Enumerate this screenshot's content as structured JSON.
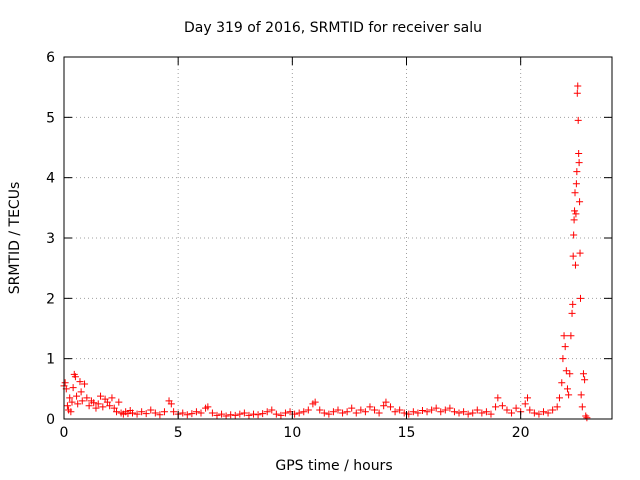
{
  "chart_data": {
    "type": "scatter",
    "title": "Day 319 of 2016, SRMTID for receiver salu",
    "xlabel": "GPS time / hours",
    "ylabel": "SRMTID / TECUs",
    "xlim": [
      0,
      24
    ],
    "ylim": [
      0,
      6
    ],
    "x_ticks": [
      "0",
      "5",
      "10",
      "15",
      "20"
    ],
    "y_ticks": [
      "0",
      "1",
      "2",
      "3",
      "4",
      "5",
      "6"
    ],
    "grid": true,
    "marker": "plus",
    "color": "#ff0000",
    "series": [
      {
        "points": [
          [
            0.0,
            0.55
          ],
          [
            0.05,
            0.6
          ],
          [
            0.1,
            0.5
          ],
          [
            0.15,
            0.22
          ],
          [
            0.2,
            0.15
          ],
          [
            0.25,
            0.35
          ],
          [
            0.3,
            0.12
          ],
          [
            0.35,
            0.28
          ],
          [
            0.4,
            0.52
          ],
          [
            0.45,
            0.74
          ],
          [
            0.5,
            0.7
          ],
          [
            0.55,
            0.38
          ],
          [
            0.6,
            0.25
          ],
          [
            0.7,
            0.62
          ],
          [
            0.75,
            0.45
          ],
          [
            0.8,
            0.3
          ],
          [
            0.9,
            0.58
          ],
          [
            1.0,
            0.35
          ],
          [
            1.1,
            0.22
          ],
          [
            1.2,
            0.3
          ],
          [
            1.3,
            0.27
          ],
          [
            1.4,
            0.18
          ],
          [
            1.5,
            0.25
          ],
          [
            1.6,
            0.38
          ],
          [
            1.7,
            0.2
          ],
          [
            1.8,
            0.33
          ],
          [
            1.9,
            0.28
          ],
          [
            2.0,
            0.22
          ],
          [
            2.1,
            0.35
          ],
          [
            2.2,
            0.18
          ],
          [
            2.3,
            0.12
          ],
          [
            2.4,
            0.28
          ],
          [
            2.5,
            0.1
          ],
          [
            2.6,
            0.08
          ],
          [
            2.7,
            0.12
          ],
          [
            2.8,
            0.09
          ],
          [
            2.9,
            0.14
          ],
          [
            3.0,
            0.1
          ],
          [
            3.2,
            0.08
          ],
          [
            3.4,
            0.12
          ],
          [
            3.6,
            0.09
          ],
          [
            3.8,
            0.15
          ],
          [
            4.0,
            0.1
          ],
          [
            4.2,
            0.07
          ],
          [
            4.4,
            0.12
          ],
          [
            4.6,
            0.3
          ],
          [
            4.7,
            0.25
          ],
          [
            4.8,
            0.12
          ],
          [
            5.0,
            0.08
          ],
          [
            5.2,
            0.1
          ],
          [
            5.4,
            0.07
          ],
          [
            5.6,
            0.09
          ],
          [
            5.8,
            0.12
          ],
          [
            6.0,
            0.1
          ],
          [
            6.2,
            0.18
          ],
          [
            6.3,
            0.2
          ],
          [
            6.5,
            0.1
          ],
          [
            6.7,
            0.06
          ],
          [
            6.9,
            0.08
          ],
          [
            7.1,
            0.05
          ],
          [
            7.3,
            0.07
          ],
          [
            7.5,
            0.06
          ],
          [
            7.7,
            0.08
          ],
          [
            7.9,
            0.1
          ],
          [
            8.1,
            0.06
          ],
          [
            8.3,
            0.08
          ],
          [
            8.5,
            0.07
          ],
          [
            8.7,
            0.09
          ],
          [
            8.9,
            0.12
          ],
          [
            9.1,
            0.15
          ],
          [
            9.3,
            0.08
          ],
          [
            9.5,
            0.06
          ],
          [
            9.7,
            0.1
          ],
          [
            9.9,
            0.12
          ],
          [
            10.1,
            0.08
          ],
          [
            10.3,
            0.1
          ],
          [
            10.5,
            0.12
          ],
          [
            10.7,
            0.15
          ],
          [
            10.9,
            0.25
          ],
          [
            11.0,
            0.28
          ],
          [
            11.2,
            0.15
          ],
          [
            11.4,
            0.1
          ],
          [
            11.6,
            0.08
          ],
          [
            11.8,
            0.12
          ],
          [
            12.0,
            0.15
          ],
          [
            12.2,
            0.1
          ],
          [
            12.4,
            0.12
          ],
          [
            12.6,
            0.18
          ],
          [
            12.8,
            0.1
          ],
          [
            13.0,
            0.15
          ],
          [
            13.2,
            0.12
          ],
          [
            13.4,
            0.2
          ],
          [
            13.6,
            0.15
          ],
          [
            13.8,
            0.1
          ],
          [
            14.0,
            0.22
          ],
          [
            14.1,
            0.28
          ],
          [
            14.3,
            0.2
          ],
          [
            14.5,
            0.12
          ],
          [
            14.7,
            0.15
          ],
          [
            14.9,
            0.1
          ],
          [
            15.1,
            0.08
          ],
          [
            15.3,
            0.12
          ],
          [
            15.5,
            0.1
          ],
          [
            15.7,
            0.14
          ],
          [
            15.9,
            0.12
          ],
          [
            16.1,
            0.15
          ],
          [
            16.3,
            0.18
          ],
          [
            16.5,
            0.12
          ],
          [
            16.7,
            0.15
          ],
          [
            16.9,
            0.18
          ],
          [
            17.1,
            0.12
          ],
          [
            17.3,
            0.1
          ],
          [
            17.5,
            0.12
          ],
          [
            17.7,
            0.08
          ],
          [
            17.9,
            0.1
          ],
          [
            18.1,
            0.15
          ],
          [
            18.3,
            0.1
          ],
          [
            18.5,
            0.12
          ],
          [
            18.7,
            0.08
          ],
          [
            18.9,
            0.2
          ],
          [
            19.0,
            0.35
          ],
          [
            19.2,
            0.22
          ],
          [
            19.4,
            0.15
          ],
          [
            19.6,
            0.1
          ],
          [
            19.8,
            0.18
          ],
          [
            20.0,
            0.12
          ],
          [
            20.2,
            0.25
          ],
          [
            20.3,
            0.35
          ],
          [
            20.4,
            0.15
          ],
          [
            20.6,
            0.1
          ],
          [
            20.8,
            0.08
          ],
          [
            21.0,
            0.12
          ],
          [
            21.2,
            0.1
          ],
          [
            21.4,
            0.15
          ],
          [
            21.6,
            0.2
          ],
          [
            21.7,
            0.35
          ],
          [
            21.8,
            0.6
          ],
          [
            21.85,
            1.0
          ],
          [
            21.9,
            1.38
          ],
          [
            21.95,
            1.2
          ],
          [
            22.0,
            0.8
          ],
          [
            22.05,
            0.5
          ],
          [
            22.1,
            0.4
          ],
          [
            22.15,
            0.75
          ],
          [
            22.2,
            1.38
          ],
          [
            22.25,
            1.75
          ],
          [
            22.28,
            1.9
          ],
          [
            22.3,
            2.7
          ],
          [
            22.32,
            3.05
          ],
          [
            22.34,
            3.3
          ],
          [
            22.36,
            3.45
          ],
          [
            22.38,
            3.75
          ],
          [
            22.4,
            2.55
          ],
          [
            22.42,
            3.4
          ],
          [
            22.44,
            3.9
          ],
          [
            22.46,
            4.1
          ],
          [
            22.48,
            5.4
          ],
          [
            22.5,
            5.52
          ],
          [
            22.52,
            4.95
          ],
          [
            22.54,
            4.4
          ],
          [
            22.56,
            4.25
          ],
          [
            22.58,
            3.6
          ],
          [
            22.6,
            2.75
          ],
          [
            22.62,
            2.0
          ],
          [
            22.65,
            0.4
          ],
          [
            22.7,
            0.2
          ],
          [
            22.75,
            0.75
          ],
          [
            22.8,
            0.65
          ],
          [
            22.85,
            0.05
          ],
          [
            22.9,
            0.02
          ]
        ]
      }
    ]
  }
}
